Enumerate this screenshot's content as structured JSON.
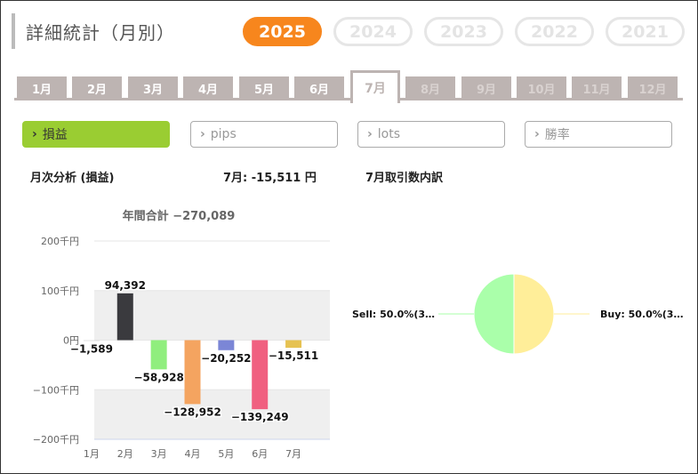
{
  "header": {
    "title": "詳細統計（月別）",
    "years": [
      {
        "label": "2025",
        "active": true
      },
      {
        "label": "2024",
        "active": false
      },
      {
        "label": "2023",
        "active": false
      },
      {
        "label": "2022",
        "active": false
      },
      {
        "label": "2021",
        "active": false
      }
    ]
  },
  "months": [
    {
      "label": "1月",
      "state": "past"
    },
    {
      "label": "2月",
      "state": "past"
    },
    {
      "label": "3月",
      "state": "past"
    },
    {
      "label": "4月",
      "state": "past"
    },
    {
      "label": "5月",
      "state": "past"
    },
    {
      "label": "6月",
      "state": "past"
    },
    {
      "label": "7月",
      "state": "active"
    },
    {
      "label": "8月",
      "state": "future"
    },
    {
      "label": "9月",
      "state": "future"
    },
    {
      "label": "10月",
      "state": "future"
    },
    {
      "label": "11月",
      "state": "future"
    },
    {
      "label": "12月",
      "state": "future"
    }
  ],
  "metrics": [
    {
      "label": "損益",
      "active": true
    },
    {
      "label": "pips",
      "active": false
    },
    {
      "label": "lots",
      "active": false
    },
    {
      "label": "勝率",
      "active": false
    }
  ],
  "monthly": {
    "title": "月次分析 (損益)",
    "current": "7月:  -15,511 円",
    "annual_total": "年間合計 −270,089"
  },
  "breakdown": {
    "title": "7月取引数内訳"
  },
  "chart_data": [
    {
      "type": "bar",
      "categories": [
        "1月",
        "2月",
        "3月",
        "4月",
        "5月",
        "6月",
        "7月"
      ],
      "values": [
        -1589,
        94392,
        -58928,
        -128952,
        -20252,
        -139249,
        -15511
      ],
      "data_labels": [
        "−1,589",
        "94,392",
        "−58,928",
        "−128,952",
        "−20,252",
        "−139,249",
        "−15,511"
      ],
      "colors": [
        "#e0e0e0",
        "#3a3a3e",
        "#90ee7e",
        "#f4a460",
        "#7b86d6",
        "#f06080",
        "#e6c252"
      ],
      "yticks": [
        200000,
        100000,
        0,
        -100000,
        -200000
      ],
      "ytick_labels": [
        "200千円",
        "100千円",
        "0円",
        "−100千円",
        "−200千円"
      ],
      "ylim": [
        -200000,
        200000
      ],
      "title": "年間合計 −270,089"
    },
    {
      "type": "pie",
      "labels": [
        "Sell: 50.0%(3…",
        "Buy: 50.0%(3…"
      ],
      "values": [
        50,
        50
      ],
      "colors": [
        "#aaffaa",
        "#ffee99"
      ]
    }
  ]
}
